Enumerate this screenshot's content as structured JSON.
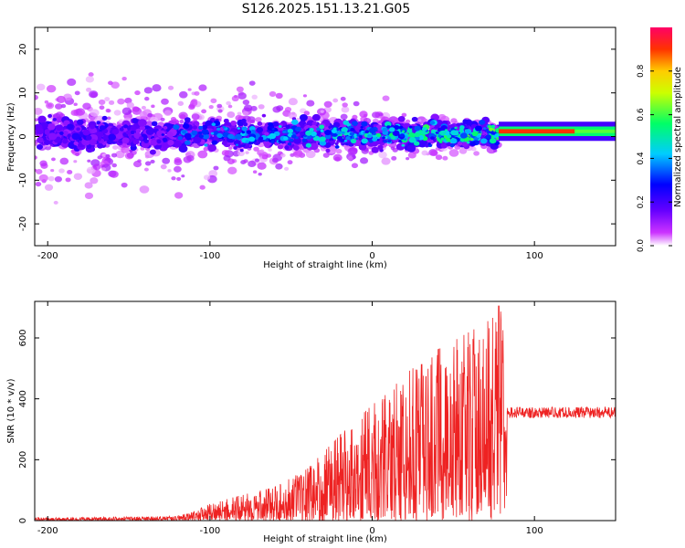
{
  "title": "S126.2025.151.13.21.G05",
  "chart_data": [
    {
      "type": "heatmap",
      "xlabel": "Height of straight line (km)",
      "ylabel": "Frequency (Hz)",
      "xlim": [
        -208,
        150
      ],
      "ylim": [
        -25,
        25
      ],
      "x_ticks": [
        -200,
        -100,
        0,
        100
      ],
      "y_ticks": [
        -20,
        -10,
        0,
        10,
        20
      ],
      "colorbar": {
        "label": "Normalized spectral amplitude",
        "range": [
          0,
          1
        ],
        "ticks": [
          "0.0",
          "0.2",
          "0.4",
          "0.6",
          "0.8"
        ],
        "colors": [
          "#ffffff",
          "#cc33ff",
          "#6600ff",
          "#0000ff",
          "#00ccff",
          "#00ff66",
          "#ccff00",
          "#ffcc00",
          "#ff3300",
          "#ff0066"
        ]
      },
      "features": {
        "main_band_center_hz": 0.5,
        "main_band_halfwidth_hz": 4,
        "scatter_extent_hz_at_x_min": 25,
        "scatter_extent_hz_at_x_max": 4,
        "tone_start_km": 78,
        "tone_frequency_hz": 1.2,
        "tone_amplitude": 0.9
      }
    },
    {
      "type": "line",
      "xlabel": "Height of straight line (km)",
      "ylabel": "SNR (10 * v/v)",
      "xlim": [
        -208,
        150
      ],
      "ylim": [
        0,
        720
      ],
      "x_ticks": [
        -200,
        -100,
        0,
        100
      ],
      "y_ticks": [
        0,
        200,
        400,
        600
      ],
      "color": "#ee2222",
      "envelope_x": [
        -208,
        -150,
        -120,
        -110,
        -100,
        -80,
        -60,
        -40,
        -20,
        0,
        10,
        20,
        40,
        60,
        70,
        80,
        83,
        90,
        120,
        150
      ],
      "envelope_y": [
        10,
        12,
        15,
        30,
        55,
        85,
        110,
        170,
        280,
        380,
        420,
        480,
        560,
        620,
        650,
        690,
        360,
        360,
        355,
        360
      ],
      "annotations": {
        "peak_value": 705,
        "peak_x_km": 78,
        "plateau_start_km": 83,
        "plateau_level": 355,
        "plateau_range": [
          335,
          380
        ]
      }
    }
  ]
}
